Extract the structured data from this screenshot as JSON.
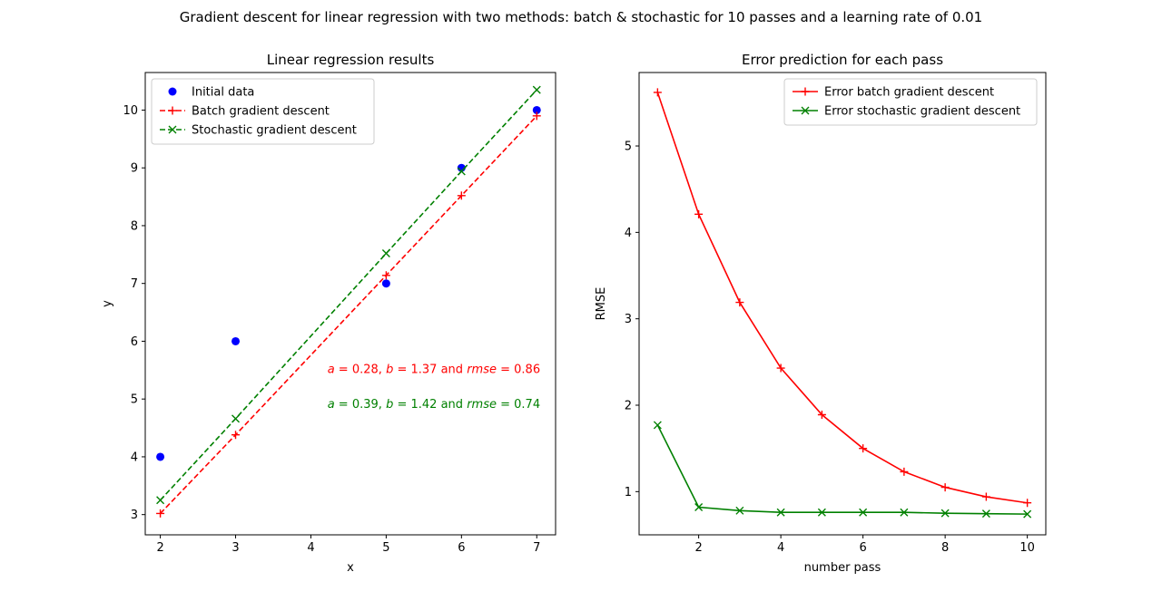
{
  "figure": {
    "suptitle": "Gradient descent for linear regression with two methods: batch & stochastic for 10 passes and a learning rate of 0.01"
  },
  "chart_data": [
    {
      "type": "scatter",
      "title": "Linear regression results",
      "xlabel": "x",
      "ylabel": "y",
      "xlim": [
        1.8,
        7.25
      ],
      "ylim": [
        2.65,
        10.65
      ],
      "xticks": [
        2,
        3,
        4,
        5,
        6,
        7
      ],
      "yticks": [
        3,
        4,
        5,
        6,
        7,
        8,
        9,
        10
      ],
      "legend": "top-left",
      "grid": false,
      "series": [
        {
          "name": "Initial data",
          "kind": "points",
          "marker": "circle",
          "color": "#0000ff",
          "x": [
            2,
            3,
            5,
            6,
            7
          ],
          "y": [
            4,
            6,
            7,
            9,
            10
          ]
        },
        {
          "name": "Batch gradient descent",
          "kind": "line",
          "dash": true,
          "marker": "plus",
          "color": "#ff0000",
          "x": [
            2,
            3,
            5,
            6,
            7
          ],
          "y": [
            3.02,
            4.38,
            7.14,
            8.52,
            9.9
          ]
        },
        {
          "name": "Stochastic gradient descent",
          "kind": "line",
          "dash": true,
          "marker": "x",
          "color": "#008000",
          "x": [
            2,
            3,
            5,
            6,
            7
          ],
          "y": [
            3.25,
            4.66,
            7.52,
            8.94,
            10.35
          ]
        }
      ],
      "annotations": [
        {
          "a": "0.28",
          "b": "1.37",
          "rmse": "0.86",
          "color": "#ff0000",
          "x": 4.22,
          "y": 5.45
        },
        {
          "a": "0.39",
          "b": "1.42",
          "rmse": "0.74",
          "color": "#008000",
          "x": 4.22,
          "y": 4.85
        }
      ]
    },
    {
      "type": "line",
      "title": "Error prediction for each pass",
      "xlabel": "number pass",
      "ylabel": "RMSE",
      "xlim": [
        0.55,
        10.45
      ],
      "ylim": [
        0.5,
        5.85
      ],
      "xticks": [
        2,
        4,
        6,
        8,
        10
      ],
      "yticks": [
        1,
        2,
        3,
        4,
        5
      ],
      "legend": "top-right",
      "grid": false,
      "series": [
        {
          "name": "Error batch gradient descent",
          "marker": "plus",
          "color": "#ff0000",
          "x": [
            1,
            2,
            3,
            4,
            5,
            6,
            7,
            8,
            9,
            10
          ],
          "y": [
            5.62,
            4.21,
            3.19,
            2.43,
            1.89,
            1.5,
            1.23,
            1.05,
            0.94,
            0.87
          ]
        },
        {
          "name": "Error stochastic gradient descent",
          "marker": "x",
          "color": "#008000",
          "x": [
            1,
            2,
            3,
            4,
            5,
            6,
            7,
            8,
            9,
            10
          ],
          "y": [
            1.77,
            0.82,
            0.78,
            0.76,
            0.76,
            0.76,
            0.76,
            0.75,
            0.745,
            0.74
          ]
        }
      ]
    }
  ]
}
